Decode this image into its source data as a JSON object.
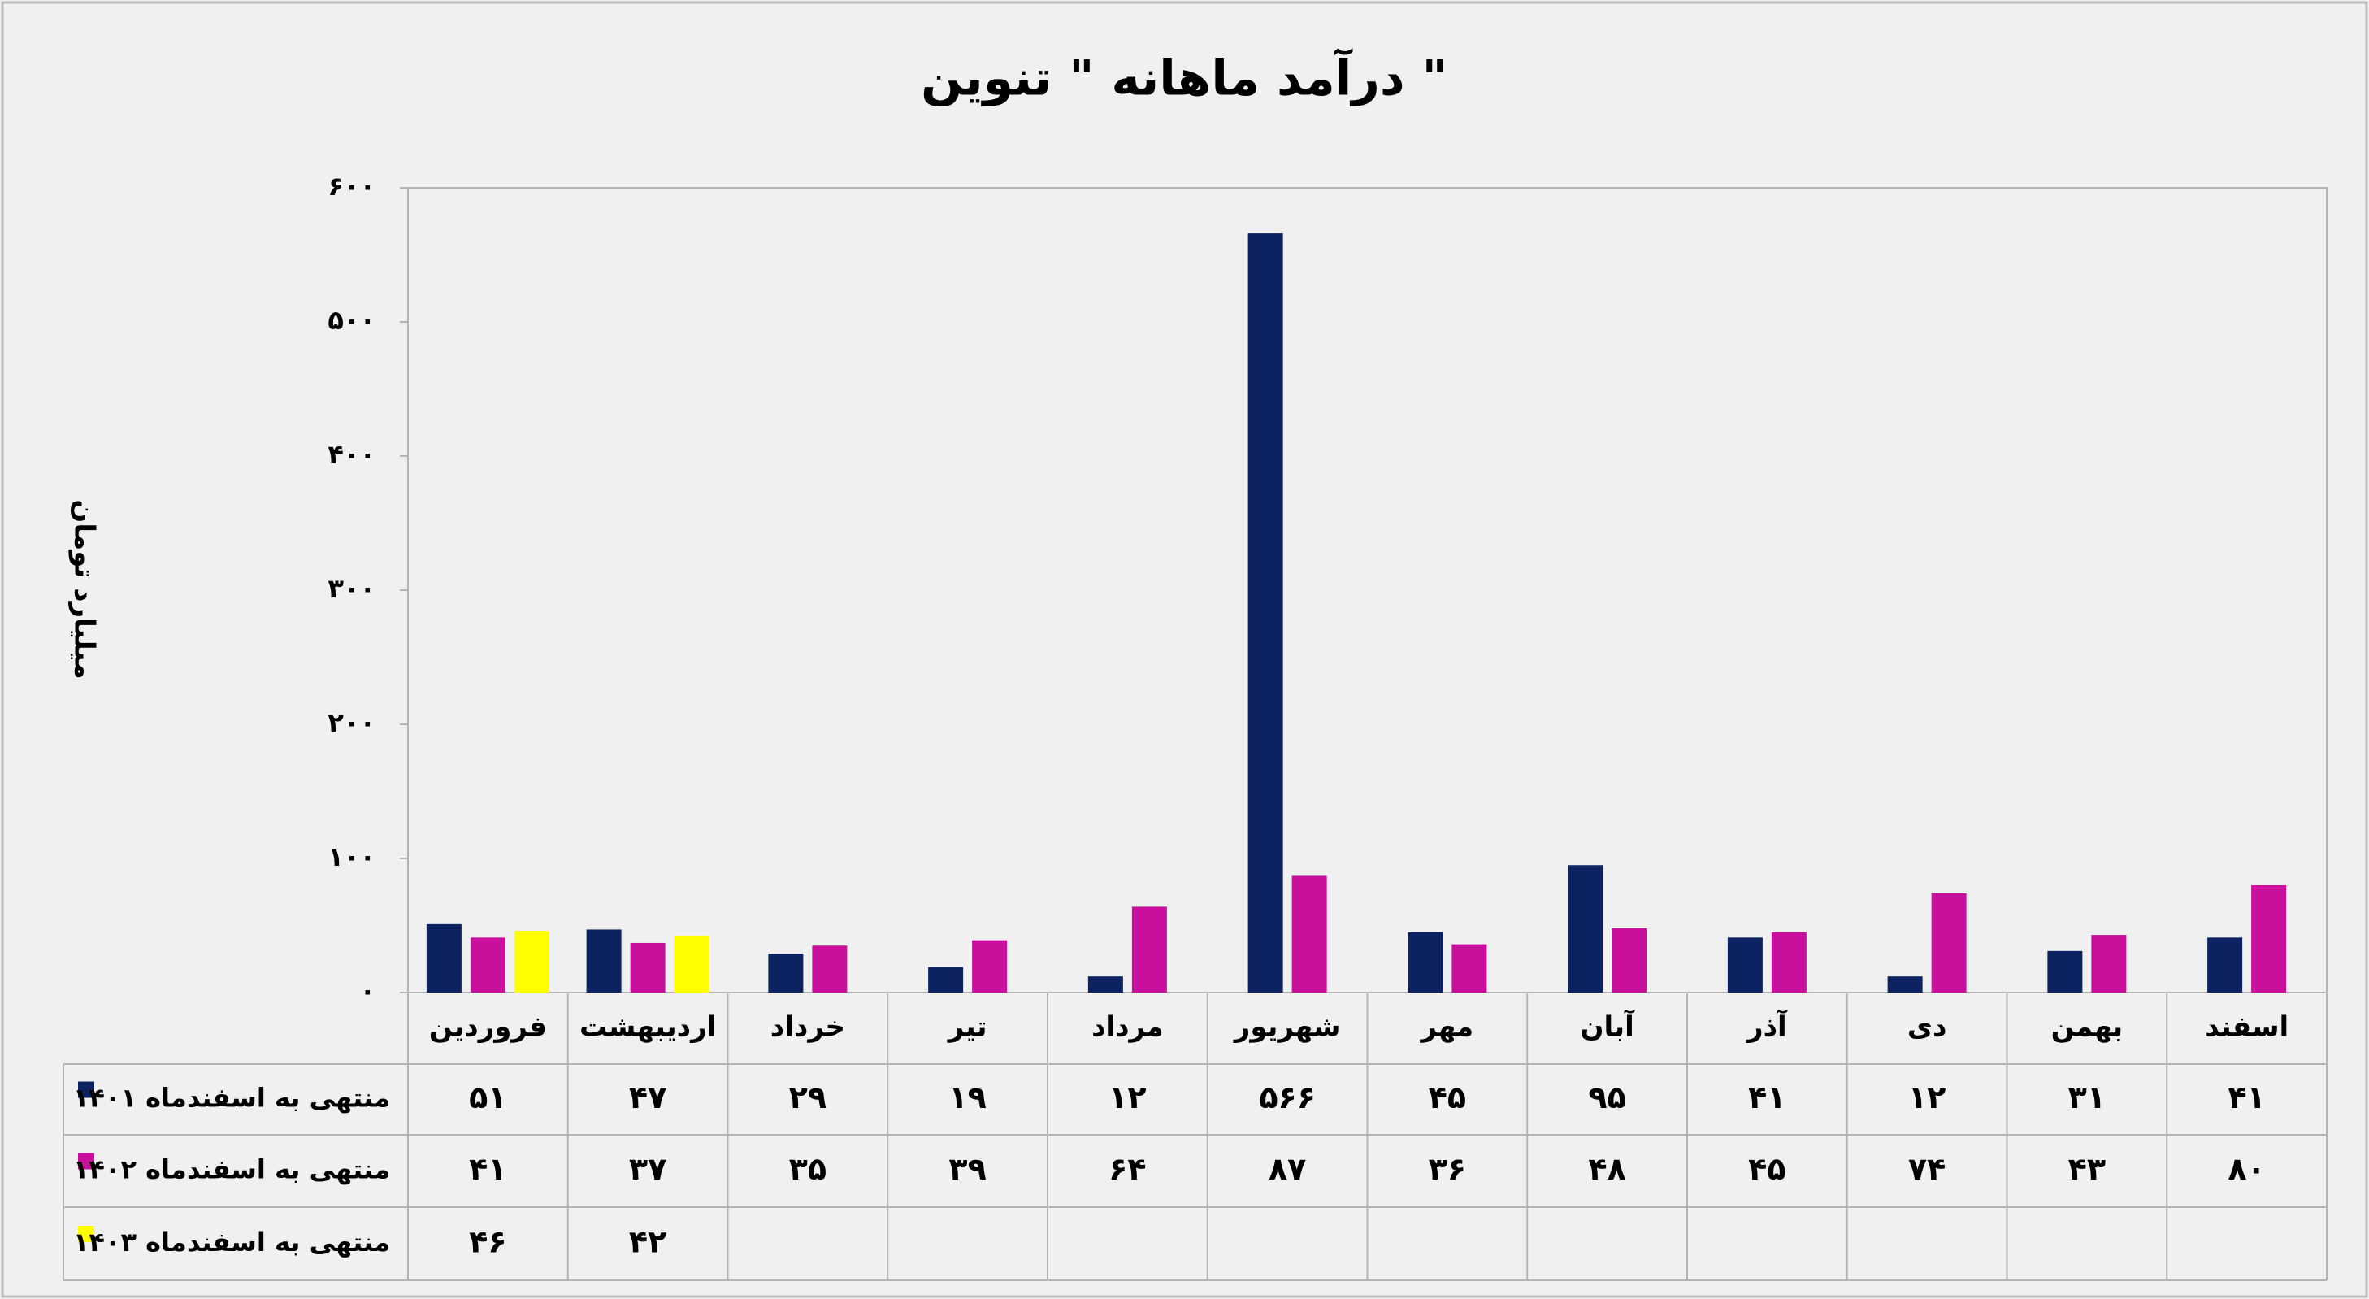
{
  "chart_data": {
    "type": "bar",
    "title": "درآمد ماهانه \" تنوین \"",
    "y_label": "میلیارد تومان",
    "categories": [
      "فروردین",
      "اردیبهشت",
      "خرداد",
      "تیر",
      "مرداد",
      "شهریور",
      "مهر",
      "آبان",
      "آذر",
      "دی",
      "بهمن",
      "اسفند"
    ],
    "series": [
      {
        "name": "منتهی به اسفندماه ۱۴۰۱",
        "color": "#0d2260",
        "values": [
          51,
          47,
          29,
          19,
          12,
          566,
          45,
          95,
          41,
          12,
          31,
          41
        ],
        "value_labels": [
          "۵۱",
          "۴۷",
          "۲۹",
          "۱۹",
          "۱۲",
          "۵۶۶",
          "۴۵",
          "۹۵",
          "۴۱",
          "۱۲",
          "۳۱",
          "۴۱"
        ]
      },
      {
        "name": "منتهی به اسفندماه ۱۴۰۲",
        "color": "#c8109c",
        "values": [
          41,
          37,
          35,
          39,
          64,
          87,
          36,
          48,
          45,
          74,
          43,
          80
        ],
        "value_labels": [
          "۴۱",
          "۳۷",
          "۳۵",
          "۳۹",
          "۶۴",
          "۸۷",
          "۳۶",
          "۴۸",
          "۴۵",
          "۷۴",
          "۴۳",
          "۸۰"
        ]
      },
      {
        "name": "منتهی به اسفندماه ۱۴۰۳",
        "color": "#ffff00",
        "values": [
          46,
          42,
          null,
          null,
          null,
          null,
          null,
          null,
          null,
          null,
          null,
          null
        ],
        "value_labels": [
          "۴۶",
          "۴۲",
          null,
          null,
          null,
          null,
          null,
          null,
          null,
          null,
          null,
          null
        ]
      }
    ],
    "ylim": [
      0,
      600
    ],
    "yticks": [
      {
        "value": 0,
        "label": "۰"
      },
      {
        "value": 100,
        "label": "۱۰۰"
      },
      {
        "value": 200,
        "label": "۲۰۰"
      },
      {
        "value": 300,
        "label": "۳۰۰"
      },
      {
        "value": 400,
        "label": "۴۰۰"
      },
      {
        "value": 500,
        "label": "۵۰۰"
      },
      {
        "value": 600,
        "label": "۶۰۰"
      }
    ]
  }
}
